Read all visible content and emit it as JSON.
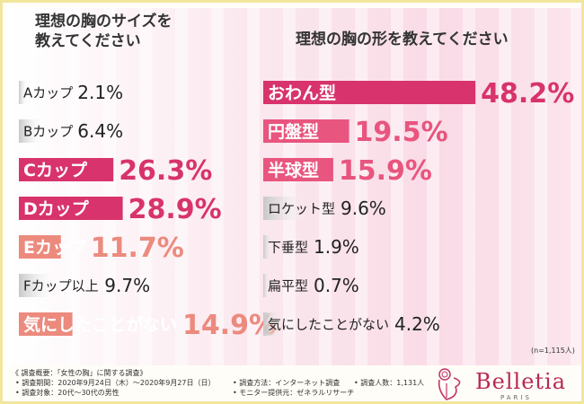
{
  "left_title_line1": "理想の胸のサイズを",
  "left_title_line2": "教えてください",
  "right_title": "理想の胸の形を教えてください",
  "n_note": "(n=1,115人)",
  "footer": {
    "header": "《 調査概要：「女性の胸」に関する調査》",
    "period": "• 調査期間：2020年9月24日（木）～2020年9月27日（日）",
    "method": "• 調査方法：インターネット調査",
    "count": "• 調査人数：1,131人",
    "target": "• 調査対象：20代～30代の男性",
    "provider": "• モニター提供元：ゼネラルリサーチ"
  },
  "logo": {
    "brand": "Belletia",
    "sub": "PARIS"
  },
  "colors": {
    "accent": "#d8336c",
    "mid": "#e8557e",
    "light": "#ec8a7e",
    "gray": "#d0d0d0",
    "text": "#222222"
  },
  "chart_data": [
    {
      "type": "bar",
      "title": "理想の胸のサイズを教えてください",
      "categories": [
        "Aカップ",
        "Bカップ",
        "Cカップ",
        "Dカップ",
        "Eカップ",
        "Fカップ以上",
        "気にしたことがない"
      ],
      "values": [
        2.1,
        6.4,
        26.3,
        28.9,
        11.7,
        9.7,
        14.9
      ],
      "labels": [
        "2.1%",
        "6.4%",
        "26.3%",
        "28.9%",
        "11.7%",
        "9.7%",
        "14.9%"
      ],
      "unit": "%"
    },
    {
      "type": "bar",
      "title": "理想の胸の形を教えてください",
      "categories": [
        "おわん型",
        "円盤型",
        "半球型",
        "ロケット型",
        "下垂型",
        "扁平型",
        "気にしたことがない"
      ],
      "values": [
        48.2,
        19.5,
        15.9,
        9.6,
        1.9,
        0.7,
        4.2
      ],
      "labels": [
        "48.2%",
        "19.5%",
        "15.9%",
        "9.6%",
        "1.9%",
        "0.7%",
        "4.2%"
      ],
      "unit": "%"
    }
  ]
}
